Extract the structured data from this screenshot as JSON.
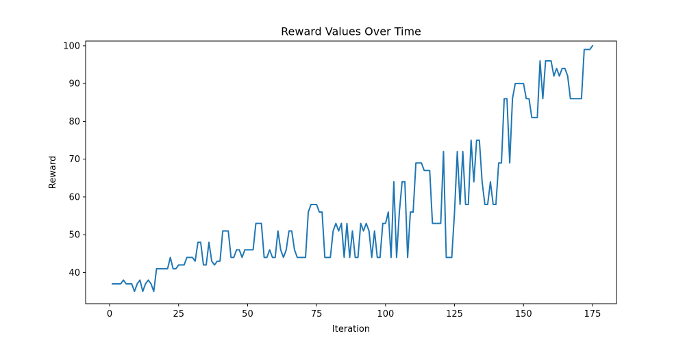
{
  "chart_data": {
    "type": "line",
    "title": "Reward Values Over Time",
    "xlabel": "Iteration",
    "ylabel": "Reward",
    "xlim": [
      -8.7,
      183.7
    ],
    "ylim": [
      31.75,
      101.25
    ],
    "xticks": [
      0,
      25,
      50,
      75,
      100,
      125,
      150,
      175
    ],
    "yticks": [
      40,
      50,
      60,
      70,
      80,
      90,
      100
    ],
    "grid": false,
    "legend": "none",
    "series": [
      {
        "color": "#1f77b4",
        "x": [
          1,
          2,
          3,
          4,
          5,
          6,
          7,
          8,
          9,
          10,
          11,
          12,
          13,
          14,
          15,
          16,
          17,
          18,
          19,
          20,
          21,
          22,
          23,
          24,
          25,
          26,
          27,
          28,
          29,
          30,
          31,
          32,
          33,
          34,
          35,
          36,
          37,
          38,
          39,
          40,
          41,
          42,
          43,
          44,
          45,
          46,
          47,
          48,
          49,
          50,
          51,
          52,
          53,
          54,
          55,
          56,
          57,
          58,
          59,
          60,
          61,
          62,
          63,
          64,
          65,
          66,
          67,
          68,
          69,
          70,
          71,
          72,
          73,
          74,
          75,
          76,
          77,
          78,
          79,
          80,
          81,
          82,
          83,
          84,
          85,
          86,
          87,
          88,
          89,
          90,
          91,
          92,
          93,
          94,
          95,
          96,
          97,
          98,
          99,
          100,
          101,
          102,
          103,
          104,
          105,
          106,
          107,
          108,
          109,
          110,
          111,
          112,
          113,
          114,
          115,
          116,
          117,
          118,
          119,
          120,
          121,
          122,
          123,
          124,
          125,
          126,
          127,
          128,
          129,
          130,
          131,
          132,
          133,
          134,
          135,
          136,
          137,
          138,
          139,
          140,
          141,
          142,
          143,
          144,
          145,
          146,
          147,
          148,
          149,
          150,
          151,
          152,
          153,
          154,
          155,
          156,
          157,
          158,
          159,
          160,
          161,
          162,
          163,
          164,
          165,
          166,
          167,
          168,
          169,
          170,
          171,
          172,
          173,
          174,
          175
        ],
        "values": [
          37,
          37,
          37,
          37,
          38,
          37,
          37,
          37,
          35,
          37,
          38,
          35,
          37,
          38,
          37,
          35,
          41,
          41,
          41,
          41,
          41,
          44,
          41,
          41,
          42,
          42,
          42,
          44,
          44,
          44,
          43,
          48,
          48,
          42,
          42,
          48,
          43,
          42,
          43,
          43,
          51,
          51,
          51,
          44,
          44,
          46,
          46,
          44,
          46,
          46,
          46,
          46,
          53,
          53,
          53,
          44,
          44,
          46,
          44,
          44,
          51,
          46,
          44,
          46,
          51,
          51,
          46,
          44,
          44,
          44,
          44,
          56,
          58,
          58,
          58,
          56,
          56,
          44,
          44,
          44,
          51,
          53,
          51,
          53,
          44,
          53,
          44,
          51,
          44,
          44,
          53,
          51,
          53,
          51,
          44,
          51,
          44,
          44,
          53,
          53,
          56,
          44,
          64,
          44,
          56,
          64,
          64,
          44,
          56,
          56,
          69,
          69,
          69,
          67,
          67,
          67,
          53,
          53,
          53,
          53,
          72,
          44,
          44,
          44,
          56,
          72,
          58,
          72,
          58,
          58,
          75,
          64,
          75,
          75,
          64,
          58,
          58,
          64,
          58,
          58,
          69,
          69,
          86,
          86,
          69,
          86,
          90,
          90,
          90,
          90,
          86,
          86,
          81,
          81,
          81,
          96,
          86,
          96,
          96,
          96,
          92,
          94,
          92,
          94,
          94,
          92,
          86,
          86,
          86,
          86,
          86,
          99,
          99,
          99,
          100
        ]
      }
    ]
  }
}
